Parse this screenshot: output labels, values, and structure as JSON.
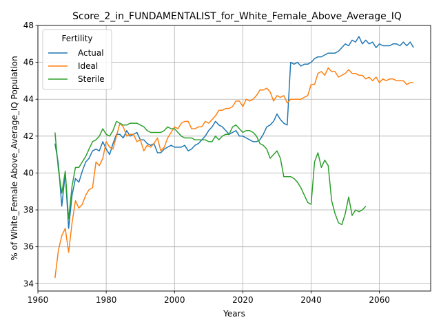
{
  "chart_data": {
    "type": "line",
    "title": "Score_2_in_FUNDAMENTALIST_for_White_Female_Above_Average_IQ",
    "xlabel": "Years",
    "ylabel": "% of White_Female Above_Average_IQ Population",
    "xlim": [
      1960,
      2075
    ],
    "ylim": [
      33.6,
      48
    ],
    "xticks": [
      1960,
      1980,
      2000,
      2020,
      2040,
      2060
    ],
    "yticks": [
      34,
      36,
      38,
      40,
      42,
      44,
      46,
      48
    ],
    "grid": true,
    "legend": {
      "title": "Fertility",
      "position": "upper left"
    },
    "series": [
      {
        "name": "Actual",
        "color": "#1f77b4",
        "x": [
          1965,
          1966,
          1967,
          1968,
          1969,
          1970,
          1971,
          1972,
          1973,
          1974,
          1975,
          1976,
          1977,
          1978,
          1979,
          1980,
          1981,
          1982,
          1983,
          1984,
          1985,
          1986,
          1987,
          1988,
          1989,
          1990,
          1991,
          1992,
          1993,
          1994,
          1995,
          1996,
          1997,
          1998,
          1999,
          2000,
          2001,
          2002,
          2003,
          2004,
          2005,
          2006,
          2007,
          2008,
          2009,
          2010,
          2011,
          2012,
          2013,
          2014,
          2015,
          2016,
          2017,
          2018,
          2019,
          2020,
          2021,
          2022,
          2023,
          2024,
          2025,
          2026,
          2027,
          2028,
          2029,
          2030,
          2031,
          2032,
          2033,
          2034,
          2035,
          2036,
          2037,
          2038,
          2039,
          2040,
          2041,
          2042,
          2043,
          2044,
          2045,
          2046,
          2047,
          2048,
          2049,
          2050,
          2051,
          2052,
          2053,
          2054,
          2055,
          2056,
          2057,
          2058,
          2059,
          2060,
          2061,
          2062,
          2063,
          2064,
          2065,
          2066,
          2067,
          2068,
          2069,
          2070
        ],
        "values": [
          41.6,
          40.5,
          38.2,
          40.0,
          37.0,
          38.8,
          39.7,
          39.5,
          40.1,
          40.6,
          40.8,
          41.2,
          41.3,
          41.2,
          41.7,
          41.3,
          41.0,
          41.6,
          42.1,
          42.1,
          41.9,
          42.3,
          42.0,
          42.1,
          42.2,
          41.8,
          41.8,
          41.6,
          41.5,
          41.6,
          41.1,
          41.1,
          41.3,
          41.4,
          41.5,
          41.4,
          41.4,
          41.4,
          41.5,
          41.2,
          41.3,
          41.5,
          41.6,
          41.8,
          42.0,
          42.3,
          42.5,
          42.8,
          42.6,
          42.5,
          42.3,
          42.1,
          42.2,
          42.3,
          42.0,
          42.0,
          41.9,
          41.8,
          41.7,
          41.7,
          41.8,
          42.1,
          42.5,
          42.6,
          42.8,
          43.2,
          42.9,
          42.7,
          42.6,
          46.0,
          45.9,
          46.0,
          45.8,
          45.9,
          45.9,
          46.0,
          46.2,
          46.3,
          46.3,
          46.4,
          46.5,
          46.5,
          46.5,
          46.6,
          46.8,
          47.0,
          46.9,
          47.2,
          47.1,
          47.4,
          47.0,
          47.2,
          47.0,
          47.1,
          46.8,
          47.0,
          46.9,
          46.9,
          46.9,
          47.0,
          47.0,
          46.9,
          47.1,
          46.9,
          47.1,
          46.8
        ]
      },
      {
        "name": "Ideal",
        "color": "#ff7f0e",
        "x": [
          1965,
          1966,
          1967,
          1968,
          1969,
          1970,
          1971,
          1972,
          1973,
          1974,
          1975,
          1976,
          1977,
          1978,
          1979,
          1980,
          1981,
          1982,
          1983,
          1984,
          1985,
          1986,
          1987,
          1988,
          1989,
          1990,
          1991,
          1992,
          1993,
          1994,
          1995,
          1996,
          1997,
          1998,
          1999,
          2000,
          2001,
          2002,
          2003,
          2004,
          2005,
          2006,
          2007,
          2008,
          2009,
          2010,
          2011,
          2012,
          2013,
          2014,
          2015,
          2016,
          2017,
          2018,
          2019,
          2020,
          2021,
          2022,
          2023,
          2024,
          2025,
          2026,
          2027,
          2028,
          2029,
          2030,
          2031,
          2032,
          2033,
          2034,
          2035,
          2036,
          2037,
          2038,
          2039,
          2040,
          2041,
          2042,
          2043,
          2044,
          2045,
          2046,
          2047,
          2048,
          2049,
          2050,
          2051,
          2052,
          2053,
          2054,
          2055,
          2056,
          2057,
          2058,
          2059,
          2060,
          2061,
          2062,
          2063,
          2064,
          2065,
          2066,
          2067,
          2068,
          2069,
          2070
        ],
        "values": [
          34.3,
          35.8,
          36.6,
          37.0,
          35.7,
          37.3,
          38.5,
          38.1,
          38.3,
          38.8,
          39.1,
          39.2,
          40.6,
          40.4,
          40.8,
          41.7,
          41.4,
          41.3,
          42.0,
          42.7,
          42.5,
          42.0,
          42.1,
          42.1,
          41.7,
          41.8,
          41.2,
          41.5,
          41.4,
          41.6,
          41.9,
          41.2,
          41.4,
          41.9,
          42.2,
          42.5,
          42.4,
          42.7,
          42.8,
          42.8,
          42.4,
          42.4,
          42.5,
          42.5,
          42.8,
          42.7,
          42.9,
          43.1,
          43.4,
          43.4,
          43.5,
          43.5,
          43.6,
          43.9,
          43.9,
          43.6,
          44.0,
          43.9,
          44.0,
          44.2,
          44.5,
          44.5,
          44.6,
          44.4,
          43.9,
          44.2,
          44.1,
          44.2,
          43.8,
          44.0,
          44.0,
          44.0,
          44.0,
          44.1,
          44.2,
          44.8,
          44.8,
          45.4,
          45.5,
          45.3,
          45.7,
          45.5,
          45.5,
          45.2,
          45.3,
          45.4,
          45.6,
          45.4,
          45.4,
          45.3,
          45.3,
          45.1,
          45.2,
          45.0,
          45.2,
          44.9,
          45.1,
          45.0,
          45.1,
          45.1,
          45.0,
          45.0,
          45.0,
          44.8,
          44.9,
          44.9
        ]
      },
      {
        "name": "Sterile",
        "color": "#2ca02c",
        "x": [
          1965,
          1966,
          1967,
          1968,
          1969,
          1970,
          1971,
          1972,
          1973,
          1974,
          1975,
          1976,
          1977,
          1978,
          1979,
          1980,
          1981,
          1982,
          1983,
          1984,
          1985,
          1986,
          1987,
          1988,
          1989,
          1990,
          1991,
          1992,
          1993,
          1994,
          1995,
          1996,
          1997,
          1998,
          1999,
          2000,
          2001,
          2002,
          2003,
          2004,
          2005,
          2006,
          2007,
          2008,
          2009,
          2010,
          2011,
          2012,
          2013,
          2014,
          2015,
          2016,
          2017,
          2018,
          2019,
          2020,
          2021,
          2022,
          2023,
          2024,
          2025,
          2026,
          2027,
          2028,
          2029,
          2030,
          2031,
          2032,
          2033,
          2034,
          2035,
          2036,
          2037,
          2038,
          2039,
          2040,
          2041,
          2042,
          2043,
          2044,
          2045,
          2046,
          2047,
          2048,
          2049,
          2050,
          2051,
          2052,
          2053,
          2054,
          2055,
          2056
        ],
        "values": [
          42.2,
          40.2,
          38.9,
          40.1,
          37.5,
          39.3,
          40.3,
          40.3,
          40.6,
          40.9,
          41.3,
          41.7,
          41.8,
          42.0,
          42.4,
          42.1,
          42.0,
          42.3,
          42.8,
          42.7,
          42.6,
          42.6,
          42.7,
          42.7,
          42.7,
          42.6,
          42.5,
          42.3,
          42.2,
          42.2,
          42.2,
          42.2,
          42.3,
          42.5,
          42.4,
          42.4,
          42.2,
          42.0,
          41.9,
          41.9,
          41.9,
          41.8,
          41.8,
          41.8,
          41.8,
          41.7,
          41.7,
          42.0,
          41.8,
          42.0,
          42.1,
          42.1,
          42.5,
          42.6,
          42.4,
          42.2,
          42.3,
          42.3,
          42.2,
          42.0,
          41.6,
          41.5,
          41.3,
          40.8,
          41.0,
          41.2,
          40.8,
          39.8,
          39.8,
          39.8,
          39.7,
          39.5,
          39.2,
          38.8,
          38.4,
          38.3,
          40.6,
          41.1,
          40.3,
          40.7,
          40.4,
          38.5,
          37.8,
          37.3,
          37.2,
          37.8,
          38.7,
          37.7,
          38.0,
          37.9,
          38.0,
          38.2
        ]
      }
    ]
  }
}
